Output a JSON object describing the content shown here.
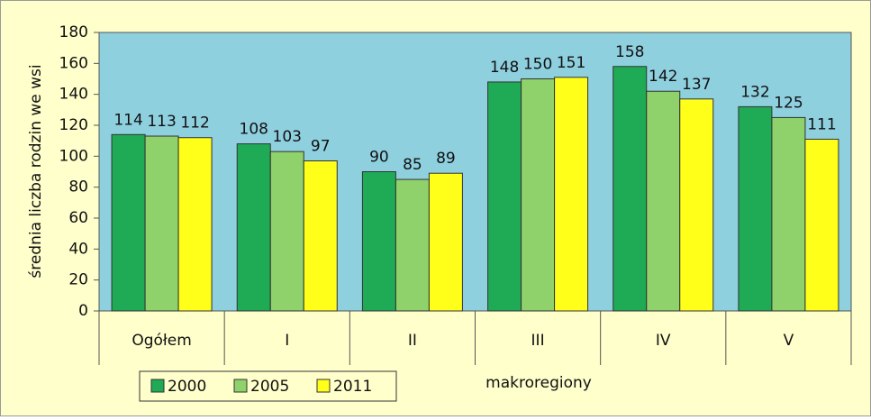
{
  "chart_data": {
    "type": "bar",
    "x_label": "makroregiony",
    "y_label": "średnia liczba rodzin we wsi",
    "categories": [
      "Ogółem",
      "I",
      "II",
      "III",
      "IV",
      "V"
    ],
    "series": [
      {
        "name": "2000",
        "color": "#1faa55",
        "values": [
          114,
          108,
          90,
          148,
          158,
          132
        ]
      },
      {
        "name": "2005",
        "color": "#8fd16a",
        "values": [
          113,
          103,
          85,
          150,
          142,
          125
        ]
      },
      {
        "name": "2011",
        "color": "#ffff1a",
        "values": [
          112,
          97,
          89,
          151,
          137,
          111
        ]
      }
    ],
    "ylim": [
      0,
      180
    ],
    "yticks": [
      0,
      20,
      40,
      60,
      80,
      100,
      120,
      140,
      160,
      180
    ],
    "grid": false,
    "legend": "bottom-left"
  }
}
